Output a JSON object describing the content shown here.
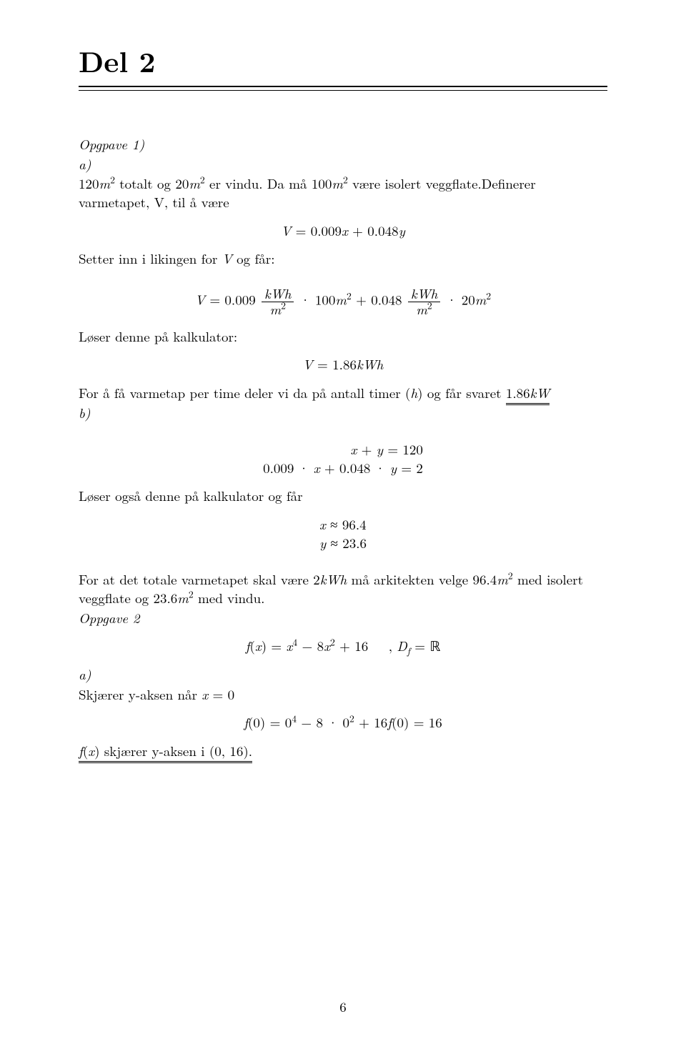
{
  "section_title": "Del 2",
  "opg1_label": "Opgpave 1)",
  "a_label": "a)",
  "b_label": "b)",
  "p1": "120m² totalt og 20m² er vindu. Da må 100m² være isolert veggflate.Definerer varmetapet, V, til å være",
  "eq_Vdef_lhs": "V",
  "eq_Vdef_rhs": "0.009x + 0.048y",
  "p2": "Setter inn i likingen for V og får:",
  "p3": "Løser denne på kalkulator:",
  "eq_Vnum_lhs": "V",
  "eq_Vnum_c1": "0.009",
  "eq_frac1_num": "kWh",
  "eq_frac1_den": "m²",
  "eq_Vnum_t1": "100m²",
  "eq_Vnum_c2": "0.048",
  "eq_frac2_num": "kWh",
  "eq_frac2_den": "m²",
  "eq_Vnum_t2": "20m²",
  "eq_Vres_lhs": "V",
  "eq_Vres_rhs": "1.86kWh",
  "p4_pre": "For å få varmetap per time deler vi da på antall timer (h) og får svaret ",
  "p4_ans": "1.86kW",
  "sys_eq1": "x + y = 120",
  "sys_eq2": "0.009 · x + 0.048 · y = 2",
  "p5": "Løser også denne på kalkulator og får",
  "approx_x": "x ≈ 96.4",
  "approx_y": "y ≈ 23.6",
  "p6": "For at det totale varmetapet skal være 2kWh må arkitekten velge 96.4m² med isolert veggflate og 23.6m² med vindu.",
  "opg2_label": "Oppgave 2",
  "eq_fdef": "f(x) = x⁴ − 8x² + 16    , D_f = ℝ",
  "p7": "Skjærer y-aksen når x = 0",
  "eq_f0": "f(0) = 0⁴ − 8 · 0² + 16f(0) = 16",
  "p8": "f(x) skjærer y-aksen i (0, 16).",
  "page_number": "6"
}
